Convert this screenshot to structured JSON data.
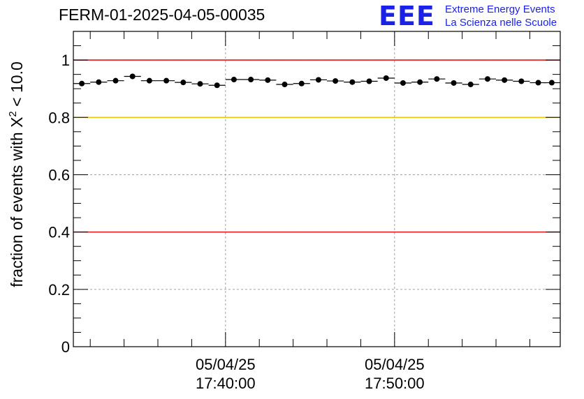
{
  "header": {
    "title": "FERM-01-2025-04-05-00035",
    "logo": "EEE",
    "logo_line1": "Extreme Energy Events",
    "logo_line2": "La Scienza nelle Scuole"
  },
  "axes": {
    "ylabel_prefix": "fraction of events with X",
    "ylabel_sup": "2",
    "ylabel_suffix": " < 10.0"
  },
  "chart_data": {
    "type": "scatter",
    "ylabel": "fraction of events with X^2 < 10.0",
    "xlabel": "",
    "ylim": [
      0,
      1.1
    ],
    "yticks": [
      {
        "value": 0,
        "label": "0"
      },
      {
        "value": 0.2,
        "label": "0.2"
      },
      {
        "value": 0.4,
        "label": "0.4"
      },
      {
        "value": 0.6,
        "label": "0.6"
      },
      {
        "value": 0.8,
        "label": "0.8"
      },
      {
        "value": 1,
        "label": "1"
      }
    ],
    "xlim_minutes": [
      -9.0,
      19.8
    ],
    "xticks": [
      {
        "minute": 0,
        "date": "05/04/25",
        "time": "17:40:00"
      },
      {
        "minute": 10,
        "date": "05/04/25",
        "time": "17:50:00"
      }
    ],
    "threshold_lines": [
      {
        "value": 1.0,
        "color": "#e8141a"
      },
      {
        "value": 0.8,
        "color": "#f5c400"
      },
      {
        "value": 0.4,
        "color": "#e8141a"
      }
    ],
    "grid": true,
    "bin_minutes": 1,
    "x_minutes": [
      -8.5,
      -7.5,
      -6.5,
      -5.5,
      -4.5,
      -3.5,
      -2.5,
      -1.5,
      -0.5,
      0.5,
      1.5,
      2.5,
      3.5,
      4.5,
      5.5,
      6.5,
      7.5,
      8.5,
      9.5,
      10.5,
      11.5,
      12.5,
      13.5,
      14.5,
      15.5,
      16.5,
      17.5,
      18.5,
      19.3
    ],
    "values": [
      0.918,
      0.923,
      0.928,
      0.943,
      0.928,
      0.928,
      0.922,
      0.917,
      0.912,
      0.932,
      0.932,
      0.93,
      0.915,
      0.918,
      0.931,
      0.927,
      0.923,
      0.926,
      0.937,
      0.92,
      0.923,
      0.934,
      0.92,
      0.915,
      0.934,
      0.93,
      0.926,
      0.921,
      0.921
    ]
  }
}
